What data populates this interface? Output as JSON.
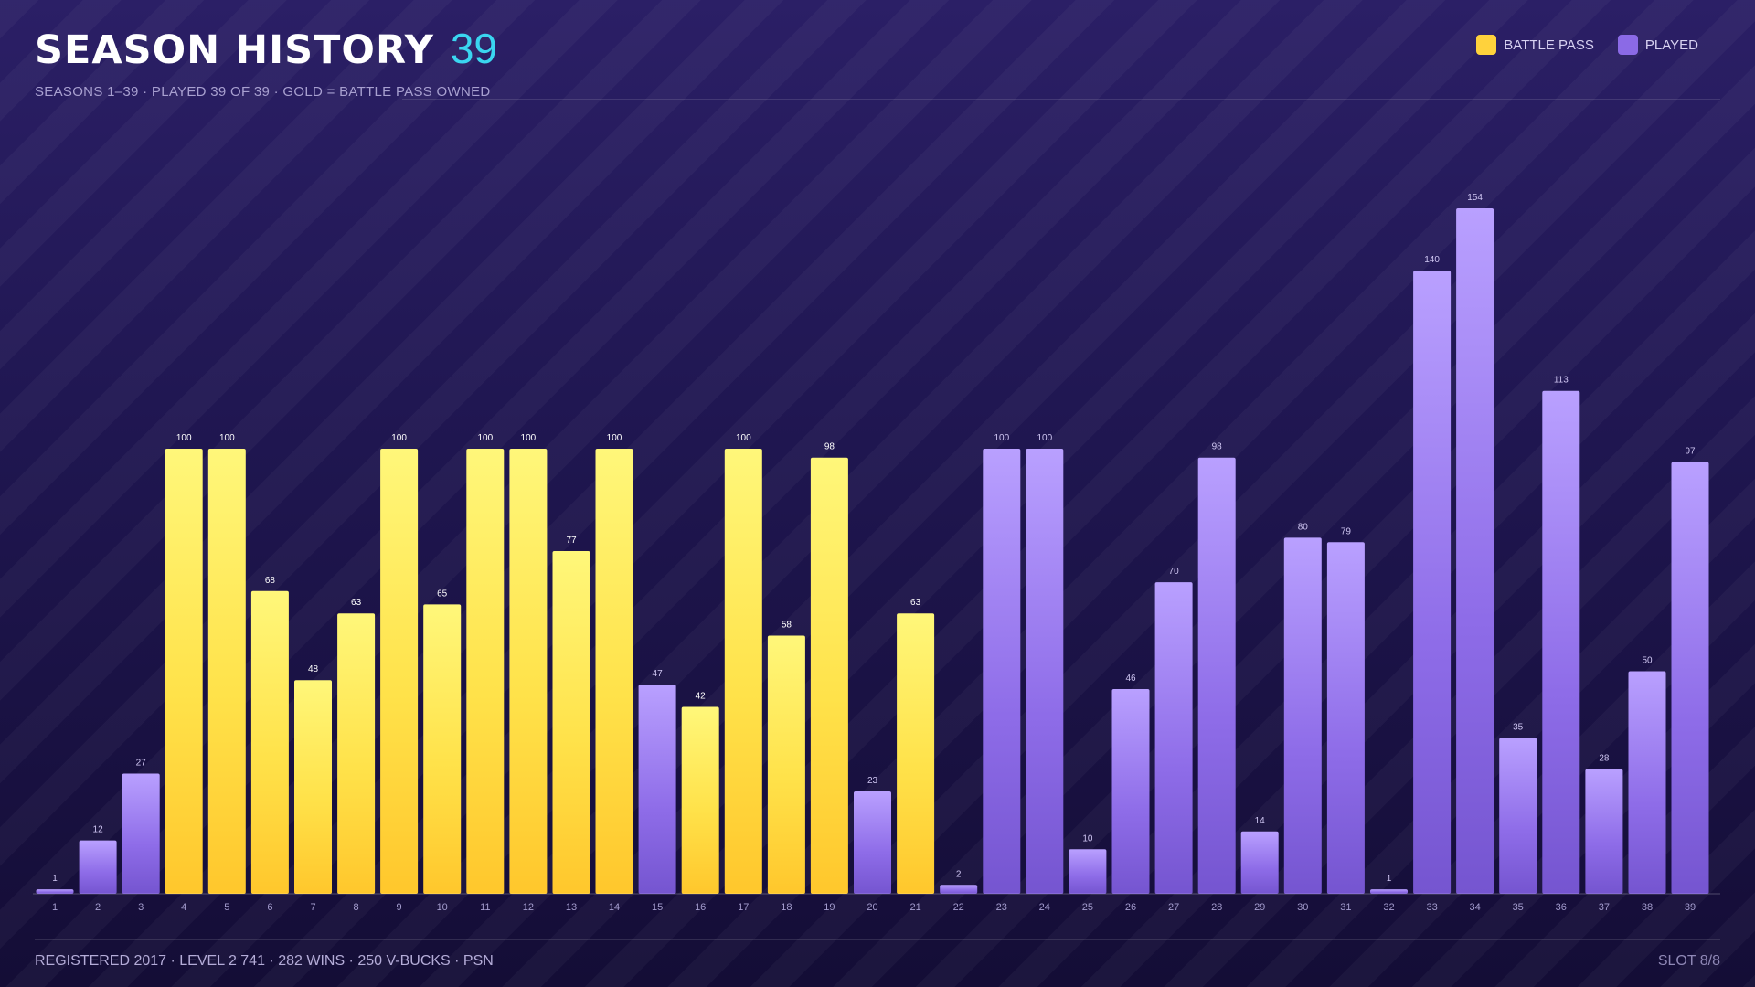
{
  "header": {
    "title": "SEASON HISTORY",
    "count": "39",
    "subtitle": "SEASONS 1–39 · PLAYED 39 OF 39 · GOLD = BATTLE PASS OWNED"
  },
  "legend": [
    {
      "label": "BATTLE PASS",
      "color": "#ffd23c"
    },
    {
      "label": "PLAYED",
      "color": "#8b6ae6"
    }
  ],
  "colors": {
    "gold": "#ffd23c",
    "purple": "#8b6ae6",
    "accent": "#3ad6f0"
  },
  "chart_data": {
    "type": "bar",
    "categories": [
      "1",
      "2",
      "3",
      "4",
      "5",
      "6",
      "7",
      "8",
      "9",
      "10",
      "11",
      "12",
      "13",
      "14",
      "15",
      "16",
      "17",
      "18",
      "19",
      "20",
      "21",
      "22",
      "23",
      "24",
      "25",
      "26",
      "27",
      "28",
      "29",
      "30",
      "31",
      "32",
      "33",
      "34",
      "35",
      "36",
      "37",
      "38",
      "39"
    ],
    "values": [
      1,
      12,
      27,
      100,
      100,
      68,
      48,
      63,
      100,
      65,
      100,
      100,
      77,
      100,
      47,
      42,
      100,
      58,
      98,
      23,
      63,
      2,
      100,
      100,
      10,
      46,
      70,
      98,
      14,
      80,
      79,
      1,
      140,
      154,
      35,
      113,
      28,
      50,
      97
    ],
    "battle_pass": [
      false,
      false,
      false,
      true,
      true,
      true,
      true,
      true,
      true,
      true,
      true,
      true,
      true,
      true,
      false,
      true,
      true,
      true,
      true,
      false,
      true,
      false,
      false,
      false,
      false,
      false,
      false,
      false,
      false,
      false,
      false,
      false,
      false,
      false,
      false,
      false,
      false,
      false,
      false
    ],
    "ylim": [
      0,
      154
    ],
    "xlabel": "",
    "ylabel": "",
    "grid": false,
    "legend_position": "top-right"
  },
  "footer": {
    "left": "REGISTERED 2017 · LEVEL 2 741 · 282 WINS · 250 V-BUCKS · PSN",
    "right": "SLOT 8/8"
  }
}
